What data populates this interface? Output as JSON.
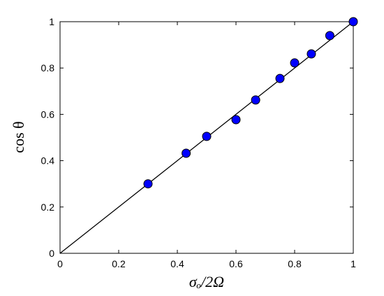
{
  "chart_data": {
    "type": "scatter",
    "xlabel": "σₒ/2Ω",
    "ylabel": "cos θ",
    "x": [
      0.3,
      0.43,
      0.5,
      0.6,
      0.667,
      0.75,
      0.8,
      0.857,
      0.92,
      1.0
    ],
    "values": [
      0.3,
      0.432,
      0.505,
      0.577,
      0.662,
      0.755,
      0.822,
      0.861,
      0.94,
      1.0
    ],
    "color": "#0000ff",
    "reference_line": {
      "x": [
        0,
        1
      ],
      "values": [
        0,
        1
      ],
      "color": "#000000"
    },
    "xlim": [
      0,
      1
    ],
    "ylim": [
      0,
      1
    ],
    "xticks": [
      0,
      0.2,
      0.4,
      0.6,
      0.8,
      1
    ],
    "yticks": [
      0,
      0.2,
      0.4,
      0.6,
      0.8,
      1
    ],
    "grid": false
  }
}
